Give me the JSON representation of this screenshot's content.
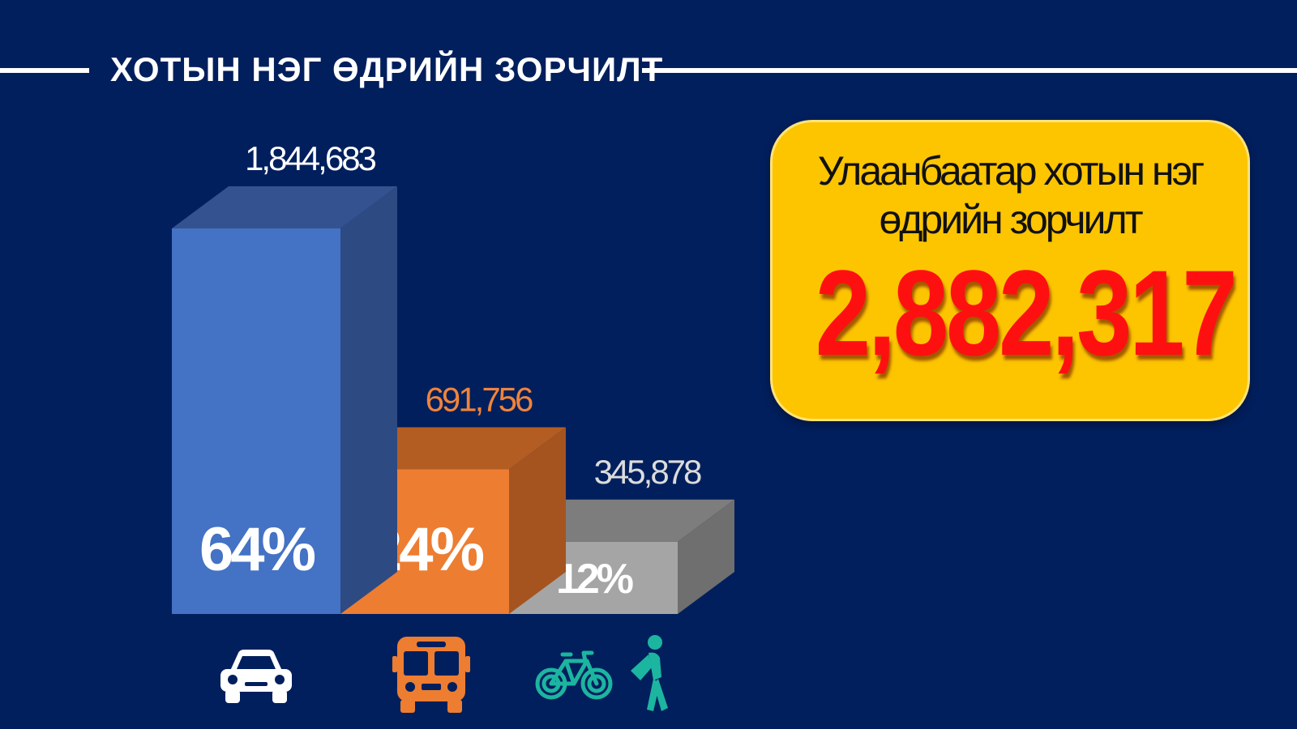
{
  "header": {
    "title": "ХОТЫН НЭГ ӨДРИЙН ЗОРЧИЛТ"
  },
  "callout": {
    "line1": "Улаанбаатар хотын нэг",
    "line2": "өдрийн зорчилт",
    "total": "2,882,317"
  },
  "chart_data": {
    "type": "bar",
    "title": "ХОТЫН НЭГ ӨДРИЙН ЗОРЧИЛТ",
    "categories": [
      "car",
      "bus",
      "bicycle-walking"
    ],
    "values": [
      1844683,
      691756,
      345878
    ],
    "value_labels": [
      "1,844,683",
      "691,756",
      "345,878"
    ],
    "percent_labels": [
      "64%",
      "24%",
      "12%"
    ],
    "percents": [
      64,
      24,
      12
    ],
    "colors": {
      "front": [
        "#4472c4",
        "#ed7d31",
        "#a5a5a5"
      ],
      "top": [
        "#33528f",
        "#b35d23",
        "#7d7d7d"
      ],
      "side": [
        "#2e4a82",
        "#a55420",
        "#6f6f6f"
      ],
      "value_label": [
        "#ffffff",
        "#f0843a",
        "#dcdcdc"
      ]
    },
    "grid": false,
    "legend": "none"
  },
  "icons": {
    "car": {
      "name": "car-icon",
      "color": "#ffffff"
    },
    "bus": {
      "name": "bus-icon",
      "color": "#ed7d31"
    },
    "bicycle": {
      "name": "bicycle-icon",
      "color": "#1cb5a0"
    },
    "walker": {
      "name": "walking-person-icon",
      "color": "#1cb5a0"
    }
  }
}
